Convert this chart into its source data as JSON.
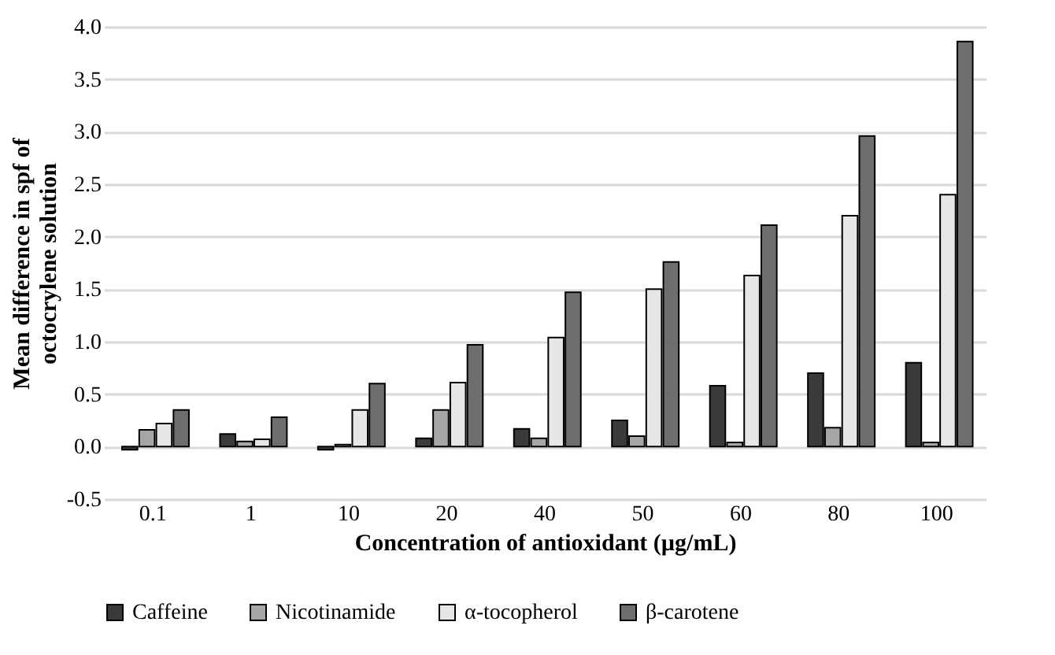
{
  "chart_data": {
    "type": "bar",
    "xlabel": "Concentration of antioxidant (µg/mL)",
    "ylabel": "Mean difference in spf of octocrylene solution",
    "categories": [
      "0.1",
      "1",
      "10",
      "20",
      "40",
      "50",
      "60",
      "80",
      "100"
    ],
    "series": [
      {
        "name": "Caffeine",
        "color": "#3a3a3a",
        "values": [
          -0.03,
          0.12,
          -0.03,
          0.08,
          0.17,
          0.25,
          0.58,
          0.7,
          0.8
        ]
      },
      {
        "name": "Nicotinamide",
        "color": "#a6a6a6",
        "values": [
          0.16,
          0.05,
          0.02,
          0.35,
          0.08,
          0.1,
          0.04,
          0.18,
          0.04
        ]
      },
      {
        "name": "α-tocopherol",
        "color": "#e6e6e6",
        "values": [
          0.22,
          0.07,
          0.35,
          0.61,
          1.04,
          1.5,
          1.63,
          2.2,
          2.4
        ]
      },
      {
        "name": "β-carotene",
        "color": "#6e6e6e",
        "values": [
          0.35,
          0.28,
          0.6,
          0.97,
          1.47,
          1.76,
          2.11,
          2.96,
          3.86
        ]
      }
    ],
    "ylim": [
      -0.5,
      4.0
    ],
    "yticks": [
      {
        "value": -0.5,
        "label": "-0.5"
      },
      {
        "value": 0,
        "label": "0.0"
      },
      {
        "value": 0.5,
        "label": "0.5"
      },
      {
        "value": 1,
        "label": "1.0"
      },
      {
        "value": 1.5,
        "label": "1.5"
      },
      {
        "value": 2,
        "label": "2.0"
      },
      {
        "value": 2.5,
        "label": "2.5"
      },
      {
        "value": 3,
        "label": "3.0"
      },
      {
        "value": 3.5,
        "label": "3.5"
      },
      {
        "value": 4,
        "label": "4.0"
      }
    ],
    "grid": "y",
    "legend": "bottom"
  }
}
